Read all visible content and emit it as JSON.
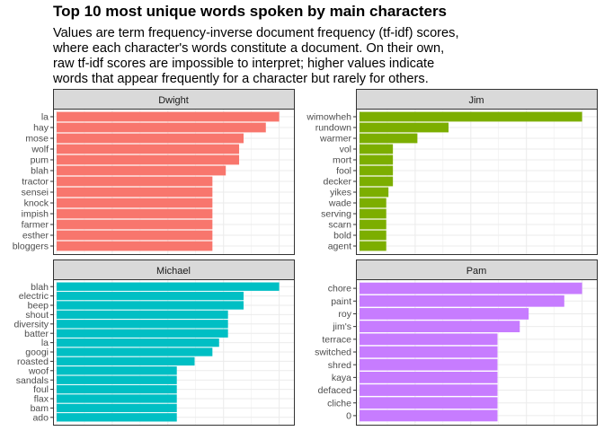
{
  "title": "Top 10 most unique words spoken by main characters",
  "subtitle": [
    "Values are term frequency-inverse document frequency (tf-idf) scores,",
    "where each character's words constitute a document. On their own,",
    "raw tf-idf scores are impossible to interpret; higher values indicate",
    "words that appear frequently for a character but rarely for others."
  ],
  "chart_data": [
    {
      "type": "bar",
      "orientation": "horizontal",
      "facet": "Dwight",
      "color": "#F8766D",
      "categories": [
        "la",
        "hay",
        "mose",
        "wolf",
        "pum",
        "blah",
        "tractor",
        "sensei",
        "knock",
        "impish",
        "farmer",
        "esther",
        "bloggers"
      ],
      "values": [
        1.0,
        0.94,
        0.84,
        0.82,
        0.82,
        0.76,
        0.7,
        0.7,
        0.7,
        0.7,
        0.7,
        0.7,
        0.7
      ],
      "xlim": [
        0,
        1.05
      ],
      "grid": true
    },
    {
      "type": "bar",
      "orientation": "horizontal",
      "facet": "Jim",
      "color": "#7CAE00",
      "categories": [
        "wimowheh",
        "rundown",
        "warmer",
        "vol",
        "mort",
        "fool",
        "decker",
        "yikes",
        "wade",
        "serving",
        "scarn",
        "bold",
        "agent"
      ],
      "values": [
        1.0,
        0.4,
        0.26,
        0.15,
        0.15,
        0.15,
        0.15,
        0.13,
        0.12,
        0.12,
        0.12,
        0.12,
        0.12
      ],
      "xlim": [
        0,
        1.05
      ],
      "grid": true
    },
    {
      "type": "bar",
      "orientation": "horizontal",
      "facet": "Michael",
      "color": "#00BFC4",
      "categories": [
        "blah",
        "electric",
        "beep",
        "shout",
        "diversity",
        "batter",
        "la",
        "googi",
        "roasted",
        "woof",
        "sandals",
        "foul",
        "flax",
        "bam",
        "ado"
      ],
      "values": [
        1.0,
        0.84,
        0.84,
        0.77,
        0.77,
        0.77,
        0.73,
        0.7,
        0.62,
        0.54,
        0.54,
        0.54,
        0.54,
        0.54,
        0.54
      ],
      "xlim": [
        0,
        1.05
      ],
      "grid": true
    },
    {
      "type": "bar",
      "orientation": "horizontal",
      "facet": "Pam",
      "color": "#C77CFF",
      "categories": [
        "chore",
        "paint",
        "roy",
        "jim's",
        "terrace",
        "switched",
        "shred",
        "kaya",
        "defaced",
        "cliche",
        "0"
      ],
      "values": [
        1.0,
        0.92,
        0.76,
        0.72,
        0.62,
        0.62,
        0.62,
        0.62,
        0.62,
        0.62,
        0.62
      ],
      "xlim": [
        0,
        1.05
      ],
      "grid": true
    }
  ]
}
